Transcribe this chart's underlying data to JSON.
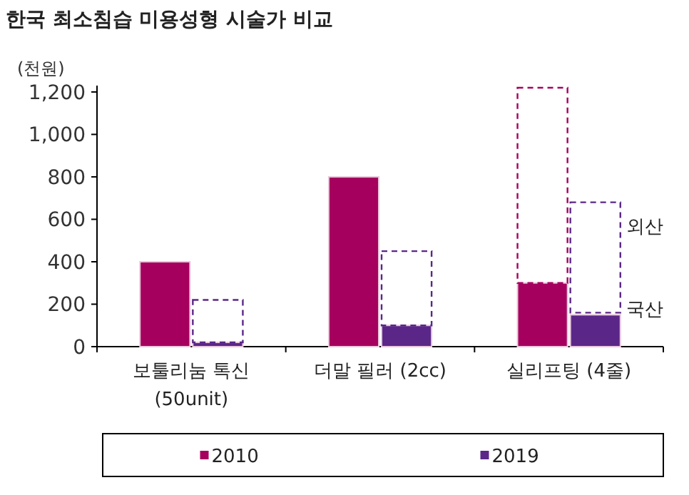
{
  "chart_data": {
    "type": "bar",
    "title": "한국 최소침습 미용성형 시술가 비교",
    "ylabel": "(천원)",
    "categories": [
      "보툴리눔 톡신\n(50unit)",
      "더말 필러 (2cc)",
      "실리프팅 (4줄)"
    ],
    "series": [
      {
        "name": "2010",
        "color": "#a6005e",
        "values": [
          400,
          800,
          300
        ]
      },
      {
        "color": "#a6005e",
        "values": [
          null,
          null,
          920
        ],
        "base": [
          null,
          null,
          300
        ],
        "line_style": "dashed"
      },
      {
        "name": "2019",
        "color": "#5a2788",
        "values": [
          20,
          100,
          150
        ]
      },
      {
        "color": "#5a2788",
        "values": [
          200,
          350,
          520
        ],
        "base": [
          20,
          100,
          160
        ],
        "line_style": "dashed"
      }
    ],
    "ylim": [
      0,
      1230
    ],
    "yticks": [
      0,
      200,
      400,
      600,
      800,
      {
        "value": 1000,
        "label": "1,000"
      },
      {
        "value": 1200,
        "label": "1,200"
      }
    ],
    "annotations": [
      "외산",
      "국산"
    ],
    "legend": "bottom",
    "grid": false
  }
}
